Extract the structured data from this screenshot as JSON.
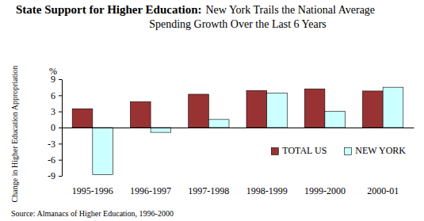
{
  "chart_data": {
    "type": "bar",
    "title": "State Support for Higher Education:",
    "subtitle": "New York Trails the National Average Spending Growth Over the Last 6 Years",
    "ylabel": "Change in Higher Education Appropriation",
    "annotations": [
      {
        "text": "%"
      },
      {
        "text": "Source: Almanacs of Higher Education, 1996-2000"
      }
    ],
    "categories": [
      "1995-1996",
      "1996-1997",
      "1997-1998",
      "1998-1999",
      "1999-2000",
      "2000-01"
    ],
    "series": [
      {
        "name": "TOTAL US",
        "color": "#993333",
        "values": [
          3.5,
          4.8,
          6.2,
          6.9,
          7.2,
          6.8
        ]
      },
      {
        "name": "NEW YORK",
        "color": "#ccffff",
        "values": [
          -8.8,
          -0.9,
          1.5,
          6.4,
          3.0,
          7.5
        ]
      }
    ],
    "ylim": [
      -9,
      9
    ],
    "yticks": [
      -9,
      -6,
      -3,
      0,
      3,
      6,
      9
    ],
    "grid": false,
    "legend": "lower right"
  }
}
